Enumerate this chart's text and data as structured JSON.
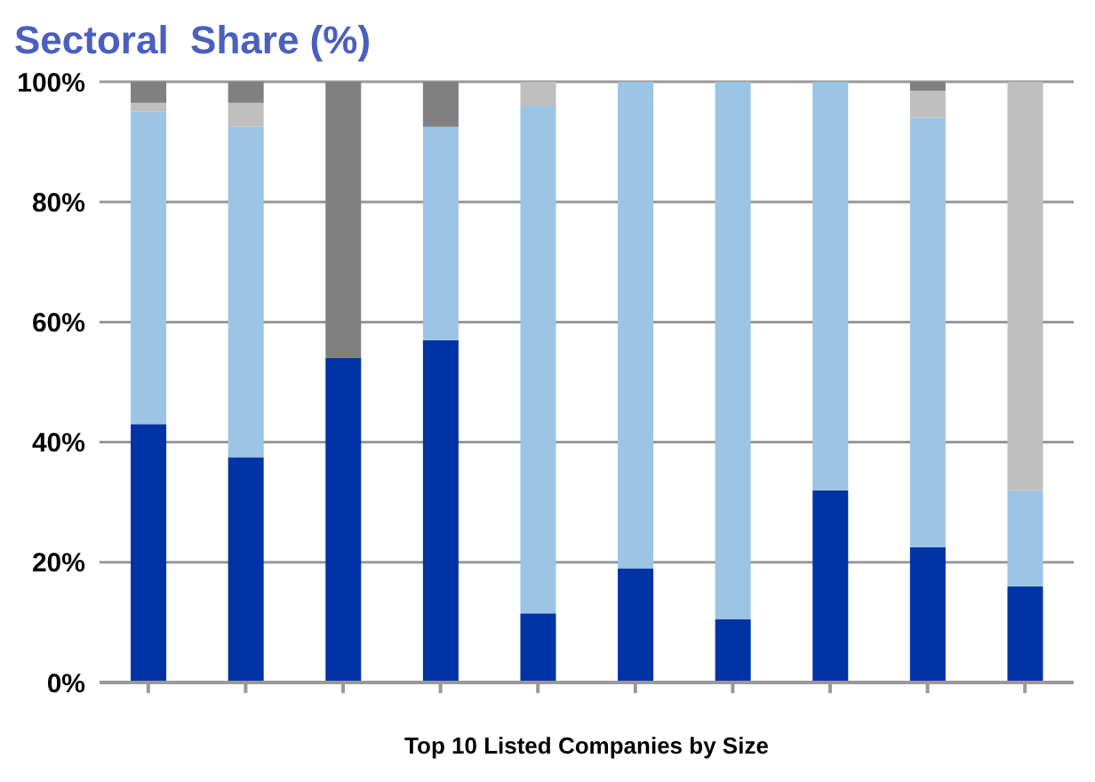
{
  "chart_data": {
    "type": "bar",
    "title": "Sectoral  Share (%)",
    "xlabel": "Top 10 Listed Companies by Size",
    "categories": [
      null,
      null,
      null,
      null,
      null,
      null,
      null,
      null,
      null,
      null
    ],
    "stacked": true,
    "grid": "y",
    "ylim": [
      0,
      100
    ],
    "yticks": [
      {
        "value": 0,
        "label": "0%"
      },
      {
        "value": 20,
        "label": "20%"
      },
      {
        "value": 40,
        "label": "40%"
      },
      {
        "value": 60,
        "label": "60%"
      },
      {
        "value": 80,
        "label": "80%"
      },
      {
        "value": 100,
        "label": "100%"
      }
    ],
    "series": [
      {
        "color": "#0033a6",
        "values": [
          43,
          37.5,
          54,
          57,
          11.5,
          19,
          10.5,
          32,
          22.5,
          16
        ]
      },
      {
        "color": "#9cc4e4",
        "values": [
          52,
          55,
          0,
          35.5,
          84.5,
          81,
          89.5,
          68,
          71.5,
          16
        ]
      },
      {
        "color": "#bfbfbf",
        "values": [
          1.5,
          4,
          0,
          0,
          4,
          0,
          0,
          0,
          4.5,
          68
        ]
      },
      {
        "color": "#808080",
        "values": [
          3.5,
          3.5,
          46,
          7.5,
          0,
          0,
          0,
          0,
          1.5,
          0
        ]
      }
    ]
  }
}
